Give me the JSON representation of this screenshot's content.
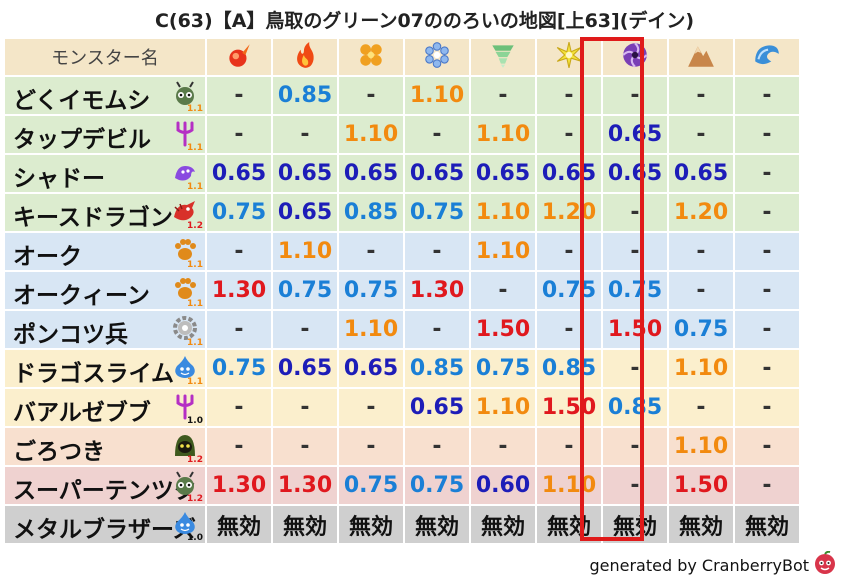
{
  "title": "C(63)【A】鳥取のグリーン07ののろいの地図[上63](デイン)",
  "header_label": "モンスター名",
  "elements": [
    {
      "icon": "fire-orb-icon"
    },
    {
      "icon": "flame-icon"
    },
    {
      "icon": "clover-icon"
    },
    {
      "icon": "ice-crystal-icon"
    },
    {
      "icon": "tornado-icon"
    },
    {
      "icon": "light-burst-icon"
    },
    {
      "icon": "dark-spiral-icon"
    },
    {
      "icon": "mountain-icon"
    },
    {
      "icon": "wave-icon"
    }
  ],
  "highlight_column": 5,
  "colors": {
    "blue": "#1a7fd6",
    "navy": "#1d1db8",
    "orange": "#f28a0f",
    "red": "#e0181e",
    "green_row": "#dceccf",
    "blue_row": "#d8e6f4",
    "yellow_row": "#fbefcd",
    "peach_row": "#f8e0cf",
    "pink_row": "#efd2d0",
    "gray_row": "#cfcfcf"
  },
  "rows": [
    {
      "name": "どくイモムシ",
      "level": "1.1",
      "level_color": "#f28a0f",
      "row_color": "#dceccf",
      "icon": "caterpillar-icon",
      "values": [
        {
          "t": "-",
          "c": "dash"
        },
        {
          "t": "0.85",
          "c": "blue"
        },
        {
          "t": "-",
          "c": "dash"
        },
        {
          "t": "1.10",
          "c": "orange"
        },
        {
          "t": "-",
          "c": "dash"
        },
        {
          "t": "-",
          "c": "dash"
        },
        {
          "t": "-",
          "c": "dash"
        },
        {
          "t": "-",
          "c": "dash"
        },
        {
          "t": "-",
          "c": "dash"
        }
      ]
    },
    {
      "name": "タップデビル",
      "level": "1.1",
      "level_color": "#f28a0f",
      "row_color": "#dceccf",
      "icon": "trident-icon",
      "values": [
        {
          "t": "-",
          "c": "dash"
        },
        {
          "t": "-",
          "c": "dash"
        },
        {
          "t": "1.10",
          "c": "orange"
        },
        {
          "t": "-",
          "c": "dash"
        },
        {
          "t": "1.10",
          "c": "orange"
        },
        {
          "t": "-",
          "c": "dash"
        },
        {
          "t": "0.65",
          "c": "navy"
        },
        {
          "t": "-",
          "c": "dash"
        },
        {
          "t": "-",
          "c": "dash"
        }
      ]
    },
    {
      "name": "シャドー",
      "level": "1.1",
      "level_color": "#f28a0f",
      "row_color": "#dceccf",
      "icon": "shadow-icon",
      "values": [
        {
          "t": "0.65",
          "c": "navy"
        },
        {
          "t": "0.65",
          "c": "navy"
        },
        {
          "t": "0.65",
          "c": "navy"
        },
        {
          "t": "0.65",
          "c": "navy"
        },
        {
          "t": "0.65",
          "c": "navy"
        },
        {
          "t": "0.65",
          "c": "navy"
        },
        {
          "t": "0.65",
          "c": "navy"
        },
        {
          "t": "0.65",
          "c": "navy"
        },
        {
          "t": "-",
          "c": "dash"
        }
      ]
    },
    {
      "name": "キースドラゴン",
      "level": "1.2",
      "level_color": "#e0181e",
      "row_color": "#dceccf",
      "icon": "dragon-icon",
      "values": [
        {
          "t": "0.75",
          "c": "blue"
        },
        {
          "t": "0.65",
          "c": "navy"
        },
        {
          "t": "0.85",
          "c": "blue"
        },
        {
          "t": "0.75",
          "c": "blue"
        },
        {
          "t": "1.10",
          "c": "orange"
        },
        {
          "t": "1.20",
          "c": "orange"
        },
        {
          "t": "-",
          "c": "dash"
        },
        {
          "t": "1.20",
          "c": "orange"
        },
        {
          "t": "-",
          "c": "dash"
        }
      ]
    },
    {
      "name": "オーク",
      "level": "1.1",
      "level_color": "#f28a0f",
      "row_color": "#d8e6f4",
      "icon": "paw-icon",
      "values": [
        {
          "t": "-",
          "c": "dash"
        },
        {
          "t": "1.10",
          "c": "orange"
        },
        {
          "t": "-",
          "c": "dash"
        },
        {
          "t": "-",
          "c": "dash"
        },
        {
          "t": "1.10",
          "c": "orange"
        },
        {
          "t": "-",
          "c": "dash"
        },
        {
          "t": "-",
          "c": "dash"
        },
        {
          "t": "-",
          "c": "dash"
        },
        {
          "t": "-",
          "c": "dash"
        }
      ]
    },
    {
      "name": "オークィーン",
      "level": "1.1",
      "level_color": "#f28a0f",
      "row_color": "#d8e6f4",
      "icon": "paw-icon",
      "values": [
        {
          "t": "1.30",
          "c": "red"
        },
        {
          "t": "0.75",
          "c": "blue"
        },
        {
          "t": "0.75",
          "c": "blue"
        },
        {
          "t": "1.30",
          "c": "red"
        },
        {
          "t": "-",
          "c": "dash"
        },
        {
          "t": "0.75",
          "c": "blue"
        },
        {
          "t": "0.75",
          "c": "blue"
        },
        {
          "t": "-",
          "c": "dash"
        },
        {
          "t": "-",
          "c": "dash"
        }
      ]
    },
    {
      "name": "ポンコツ兵",
      "level": "1.1",
      "level_color": "#f28a0f",
      "row_color": "#d8e6f4",
      "icon": "gear-icon",
      "values": [
        {
          "t": "-",
          "c": "dash"
        },
        {
          "t": "-",
          "c": "dash"
        },
        {
          "t": "1.10",
          "c": "orange"
        },
        {
          "t": "-",
          "c": "dash"
        },
        {
          "t": "1.50",
          "c": "red"
        },
        {
          "t": "-",
          "c": "dash"
        },
        {
          "t": "1.50",
          "c": "red"
        },
        {
          "t": "0.75",
          "c": "blue"
        },
        {
          "t": "-",
          "c": "dash"
        }
      ]
    },
    {
      "name": "ドラゴスライム",
      "level": "1.1",
      "level_color": "#f28a0f",
      "row_color": "#fbefcd",
      "icon": "slime-icon",
      "values": [
        {
          "t": "0.75",
          "c": "blue"
        },
        {
          "t": "0.65",
          "c": "navy"
        },
        {
          "t": "0.65",
          "c": "navy"
        },
        {
          "t": "0.85",
          "c": "blue"
        },
        {
          "t": "0.75",
          "c": "blue"
        },
        {
          "t": "0.85",
          "c": "blue"
        },
        {
          "t": "-",
          "c": "dash"
        },
        {
          "t": "1.10",
          "c": "orange"
        },
        {
          "t": "-",
          "c": "dash"
        }
      ]
    },
    {
      "name": "バアルゼブブ",
      "level": "1.0",
      "level_color": "#111111",
      "row_color": "#fbefcd",
      "icon": "trident-icon",
      "values": [
        {
          "t": "-",
          "c": "dash"
        },
        {
          "t": "-",
          "c": "dash"
        },
        {
          "t": "-",
          "c": "dash"
        },
        {
          "t": "0.65",
          "c": "navy"
        },
        {
          "t": "1.10",
          "c": "orange"
        },
        {
          "t": "1.50",
          "c": "red"
        },
        {
          "t": "0.85",
          "c": "blue"
        },
        {
          "t": "-",
          "c": "dash"
        },
        {
          "t": "-",
          "c": "dash"
        }
      ]
    },
    {
      "name": "ごろつき",
      "level": "1.2",
      "level_color": "#e0181e",
      "row_color": "#f8e0cf",
      "icon": "hooded-icon",
      "values": [
        {
          "t": "-",
          "c": "dash"
        },
        {
          "t": "-",
          "c": "dash"
        },
        {
          "t": "-",
          "c": "dash"
        },
        {
          "t": "-",
          "c": "dash"
        },
        {
          "t": "-",
          "c": "dash"
        },
        {
          "t": "-",
          "c": "dash"
        },
        {
          "t": "-",
          "c": "dash"
        },
        {
          "t": "1.10",
          "c": "orange"
        },
        {
          "t": "-",
          "c": "dash"
        }
      ]
    },
    {
      "name": "スーパーテンツク",
      "level": "1.2",
      "level_color": "#e0181e",
      "row_color": "#efd2d0",
      "icon": "caterpillar-icon",
      "values": [
        {
          "t": "1.30",
          "c": "red"
        },
        {
          "t": "1.30",
          "c": "red"
        },
        {
          "t": "0.75",
          "c": "blue"
        },
        {
          "t": "0.75",
          "c": "blue"
        },
        {
          "t": "0.60",
          "c": "navy"
        },
        {
          "t": "1.10",
          "c": "orange"
        },
        {
          "t": "-",
          "c": "dash"
        },
        {
          "t": "1.50",
          "c": "red"
        },
        {
          "t": "-",
          "c": "dash"
        }
      ]
    },
    {
      "name": "メタルブラザーズ",
      "level": "1.0",
      "level_color": "#111111",
      "row_color": "#cfcfcf",
      "icon": "slime-icon",
      "values": [
        {
          "t": "無効",
          "c": "black"
        },
        {
          "t": "無効",
          "c": "black"
        },
        {
          "t": "無効",
          "c": "black"
        },
        {
          "t": "無効",
          "c": "black"
        },
        {
          "t": "無効",
          "c": "black"
        },
        {
          "t": "無効",
          "c": "black"
        },
        {
          "t": "無効",
          "c": "black"
        },
        {
          "t": "無効",
          "c": "black"
        },
        {
          "t": "無効",
          "c": "black"
        }
      ]
    }
  ],
  "footer": "generated by CranberryBot"
}
